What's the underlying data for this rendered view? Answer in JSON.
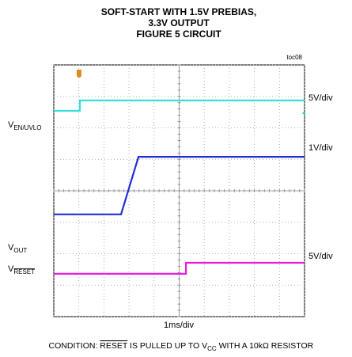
{
  "chart_data": {
    "type": "line",
    "title": [
      "SOFT-START WITH 1.5V PREBIAS,",
      "3.3V OUTPUT",
      "FIGURE 5 CIRCUIT"
    ],
    "figure_id": "toc08",
    "xlabel": "1ms/div",
    "xlim": [
      0,
      10
    ],
    "ylim": [
      0,
      8
    ],
    "xticks": [
      0,
      1,
      2,
      3,
      4,
      5,
      6,
      7,
      8,
      9,
      10
    ],
    "yticks": [
      0,
      1,
      2,
      3,
      4,
      5,
      6,
      7,
      8
    ],
    "grid": true,
    "series": [
      {
        "label": "V",
        "label_sub": "EN/UVLO",
        "scale": "5V/div",
        "color": "#33e0e0",
        "x": [
          0,
          1.04,
          1.04,
          10
        ],
        "y": [
          6.54,
          6.54,
          6.87,
          6.87
        ]
      },
      {
        "label": "V",
        "label_sub": "OUT",
        "scale": "1V/div",
        "color": "#1f2fd6",
        "x": [
          0,
          2.68,
          3.38,
          10
        ],
        "y": [
          3.25,
          3.25,
          5.08,
          5.08
        ]
      },
      {
        "label": "V",
        "label_sub": "RESET",
        "scale": "5V/div",
        "color": "#e81ee0",
        "x": [
          0,
          5.27,
          5.27,
          10
        ],
        "y": [
          1.36,
          1.36,
          1.71,
          1.71
        ]
      }
    ],
    "condition": [
      "CONDITION: ",
      "RESET",
      " IS PULLED UP TO V",
      "CC",
      " WITH A 10kΩ RESISTOR"
    ]
  }
}
